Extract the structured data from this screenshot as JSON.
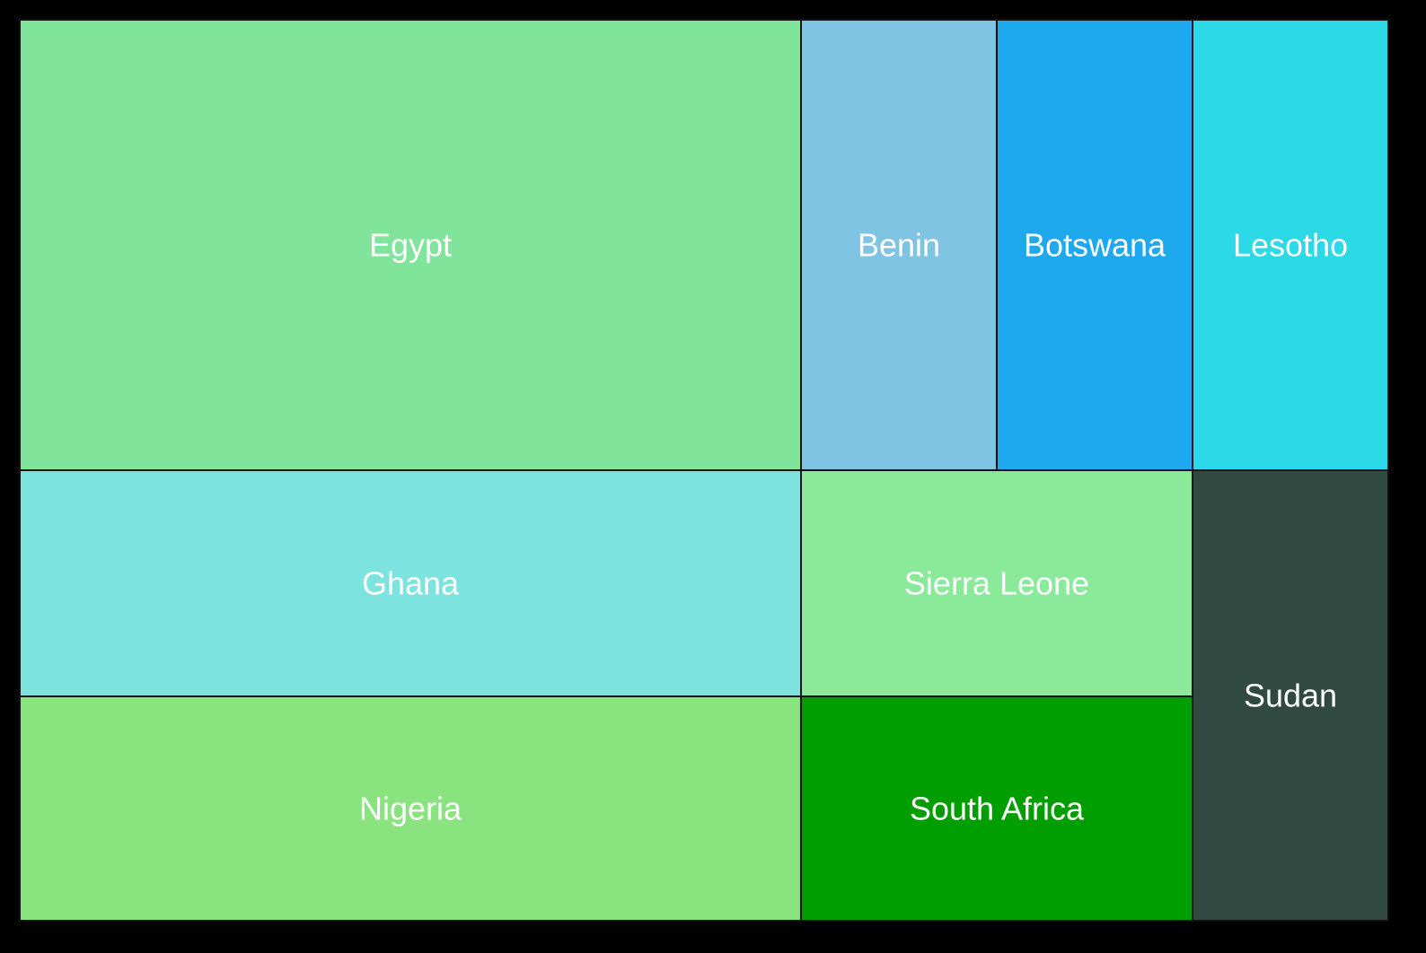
{
  "chart_data": {
    "type": "treemap",
    "title": "",
    "items": [
      {
        "name": "Egypt",
        "value": 87,
        "color": "#80e49a"
      },
      {
        "name": "Ghana",
        "value": 44,
        "color": "#7ce3df"
      },
      {
        "name": "Nigeria",
        "value": 44,
        "color": "#89e47f"
      },
      {
        "name": "Benin",
        "value": 22,
        "color": "#7fc4e3"
      },
      {
        "name": "Botswana",
        "value": 22,
        "color": "#1ea9ef"
      },
      {
        "name": "Lesotho",
        "value": 22,
        "color": "#2cd9e6"
      },
      {
        "name": "Sierra Leone",
        "value": 22,
        "color": "#8aea9a"
      },
      {
        "name": "South Africa",
        "value": 22,
        "color": "#009e00"
      },
      {
        "name": "Sudan",
        "value": 22,
        "color": "#314a41"
      }
    ]
  }
}
